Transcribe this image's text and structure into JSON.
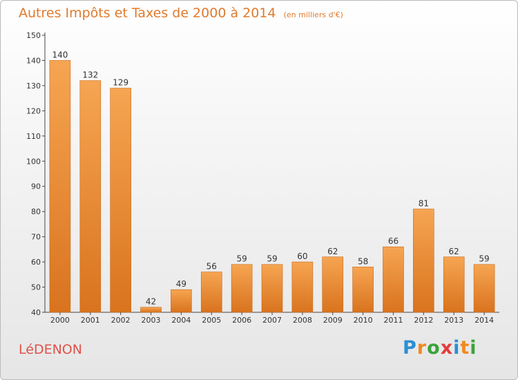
{
  "title": "Autres Impôts et Taxes de 2000 à 2014",
  "unit_note": "(en milliers d'€)",
  "commune": "LéDENON",
  "logo": {
    "letters": [
      "P",
      "r",
      "o",
      "x",
      "i",
      "t",
      "i"
    ],
    "colors": [
      "#2a8fd6",
      "#f08a1c",
      "#3aa33a",
      "#e23b3b",
      "#2a8fd6",
      "#f08a1c",
      "#3aa33a"
    ]
  },
  "colors": {
    "bar_light": "#f6a552",
    "bar_dark": "#d9731e",
    "bar_edge": "#c96818",
    "title": "#e07a2c",
    "commune": "#e0524a"
  },
  "chart_data": {
    "type": "bar",
    "title": "Autres Impôts et Taxes de 2000 à 2014",
    "subtitle": "(en milliers d'€)",
    "xlabel": "",
    "ylabel": "",
    "categories": [
      "2000",
      "2001",
      "2002",
      "2003",
      "2004",
      "2005",
      "2006",
      "2007",
      "2008",
      "2009",
      "2010",
      "2011",
      "2012",
      "2013",
      "2014"
    ],
    "values": [
      140,
      132,
      129,
      42,
      49,
      56,
      59,
      59,
      60,
      62,
      58,
      66,
      81,
      62,
      59
    ],
    "ylim": [
      40,
      150
    ],
    "yticks": [
      40,
      50,
      60,
      70,
      80,
      90,
      100,
      110,
      120,
      130,
      140,
      150
    ],
    "grid": false,
    "legend": "none"
  }
}
